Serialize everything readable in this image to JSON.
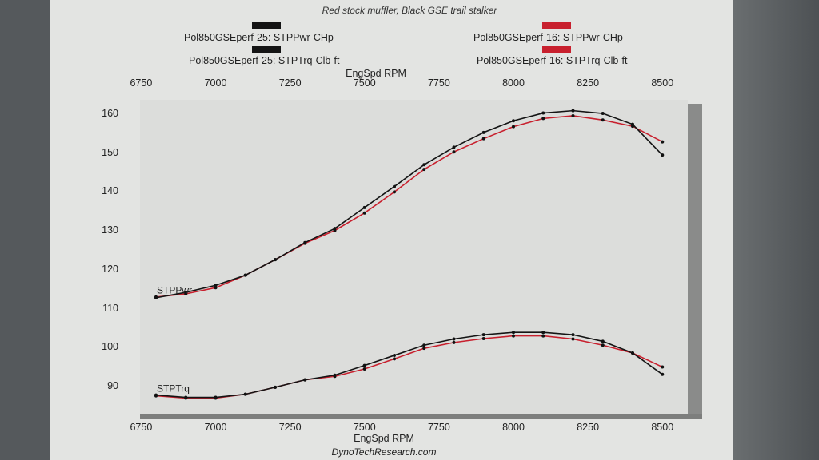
{
  "subtitle": "Red stock muffler, Black GSE trail stalker",
  "legend": [
    {
      "label": "Pol850GSEperf-25: STPPwr-CHp",
      "color": "#141414"
    },
    {
      "label": "Pol850GSEperf-25: STPTrq-Clb-ft",
      "color": "#141414"
    },
    {
      "label": "Pol850GSEperf-16: STPPwr-CHp",
      "color": "#c8202e"
    },
    {
      "label": "Pol850GSEperf-16: STPTrq-Clb-ft",
      "color": "#c8202e"
    }
  ],
  "footer": "DynoTechResearch.com",
  "chart_data": {
    "type": "line",
    "xlabel": "EngSpd RPM",
    "xticks": [
      6750,
      7000,
      7250,
      7500,
      7750,
      8000,
      8250,
      8500
    ],
    "yticks": [
      90,
      100,
      110,
      120,
      130,
      140,
      150,
      160
    ],
    "xlim": [
      6750,
      8550
    ],
    "ylim": [
      85,
      163
    ],
    "curve_labels": {
      "power": "STPPwr",
      "torque": "STPTrq"
    },
    "x": [
      6800,
      6900,
      7000,
      7100,
      7200,
      7300,
      7400,
      7500,
      7600,
      7700,
      7800,
      7900,
      8000,
      8100,
      8200,
      8300,
      8400,
      8500
    ],
    "series": [
      {
        "name": "Pol850GSEperf-25: STPPwr-CHp",
        "color": "#141414",
        "values": [
          112.8,
          114.2,
          116.0,
          118.6,
          122.6,
          127.0,
          130.6,
          136.0,
          141.4,
          147.0,
          151.5,
          155.3,
          158.3,
          160.3,
          160.9,
          160.2,
          157.4,
          149.5
        ]
      },
      {
        "name": "Pol850GSEperf-16: STPPwr-CHp",
        "color": "#c8202e",
        "values": [
          113.0,
          113.8,
          115.4,
          118.6,
          122.6,
          126.8,
          130.1,
          134.6,
          140.0,
          145.8,
          150.3,
          153.7,
          156.8,
          158.9,
          159.6,
          158.5,
          156.9,
          152.9
        ]
      },
      {
        "name": "Pol850GSEperf-25: STPTrq-Clb-ft",
        "color": "#141414",
        "values": [
          87.8,
          87.2,
          87.2,
          88.0,
          89.8,
          91.7,
          92.9,
          95.4,
          98.0,
          100.6,
          102.2,
          103.3,
          103.9,
          103.9,
          103.3,
          101.6,
          98.6,
          93.1
        ]
      },
      {
        "name": "Pol850GSEperf-16: STPTrq-Clb-ft",
        "color": "#c8202e",
        "values": [
          87.6,
          87.0,
          87.0,
          88.0,
          89.8,
          91.7,
          92.6,
          94.5,
          97.1,
          99.8,
          101.3,
          102.3,
          103.0,
          103.0,
          102.2,
          100.6,
          98.6,
          95.0
        ]
      }
    ]
  }
}
